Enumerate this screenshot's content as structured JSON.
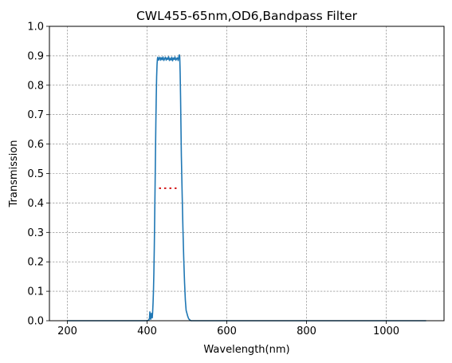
{
  "chart_data": {
    "type": "line",
    "title": "CWL455-65nm,OD6,Bandpass Filter",
    "xlabel": "Wavelength(nm)",
    "ylabel": "Transmission",
    "xlim": [
      155,
      1145
    ],
    "ylim": [
      0,
      1.0
    ],
    "xticks": [
      200,
      400,
      600,
      800,
      1000
    ],
    "yticks": [
      0,
      0.1,
      0.2,
      0.3,
      0.4,
      0.5,
      0.6,
      0.7,
      0.8,
      0.9,
      1.0
    ],
    "grid": true,
    "series": [
      {
        "color": "#1f77b4",
        "style": "solid",
        "x": [
          200,
          400,
          404,
          406,
          407,
          408,
          409,
          410,
          411,
          412,
          413,
          414,
          415,
          416,
          417,
          418,
          419,
          420,
          421,
          422,
          423,
          424,
          425,
          426,
          427,
          428,
          429,
          430,
          432,
          434,
          436,
          438,
          440,
          442,
          444,
          446,
          448,
          450,
          452,
          454,
          456,
          458,
          460,
          462,
          464,
          466,
          468,
          470,
          472,
          474,
          476,
          478,
          480,
          481,
          482,
          483,
          484,
          485,
          486,
          488,
          490,
          492,
          494,
          496,
          498,
          500,
          502,
          504,
          506,
          508,
          510,
          1100
        ],
        "y": [
          0,
          0,
          0.002,
          0.008,
          0.03,
          0.015,
          0.005,
          0.01,
          0.025,
          0.015,
          0.01,
          0.03,
          0.06,
          0.1,
          0.16,
          0.24,
          0.34,
          0.45,
          0.56,
          0.67,
          0.76,
          0.83,
          0.87,
          0.89,
          0.895,
          0.89,
          0.885,
          0.89,
          0.895,
          0.885,
          0.893,
          0.887,
          0.896,
          0.884,
          0.89,
          0.895,
          0.885,
          0.892,
          0.888,
          0.897,
          0.884,
          0.891,
          0.886,
          0.895,
          0.883,
          0.892,
          0.888,
          0.896,
          0.885,
          0.89,
          0.893,
          0.884,
          0.898,
          0.903,
          0.895,
          0.84,
          0.76,
          0.66,
          0.56,
          0.43,
          0.31,
          0.21,
          0.13,
          0.07,
          0.035,
          0.025,
          0.015,
          0.008,
          0.004,
          0.002,
          0,
          0
        ]
      },
      {
        "color": "#d62728",
        "style": "dotted",
        "x": [
          430,
          480
        ],
        "y": [
          0.45,
          0.45
        ]
      }
    ]
  }
}
